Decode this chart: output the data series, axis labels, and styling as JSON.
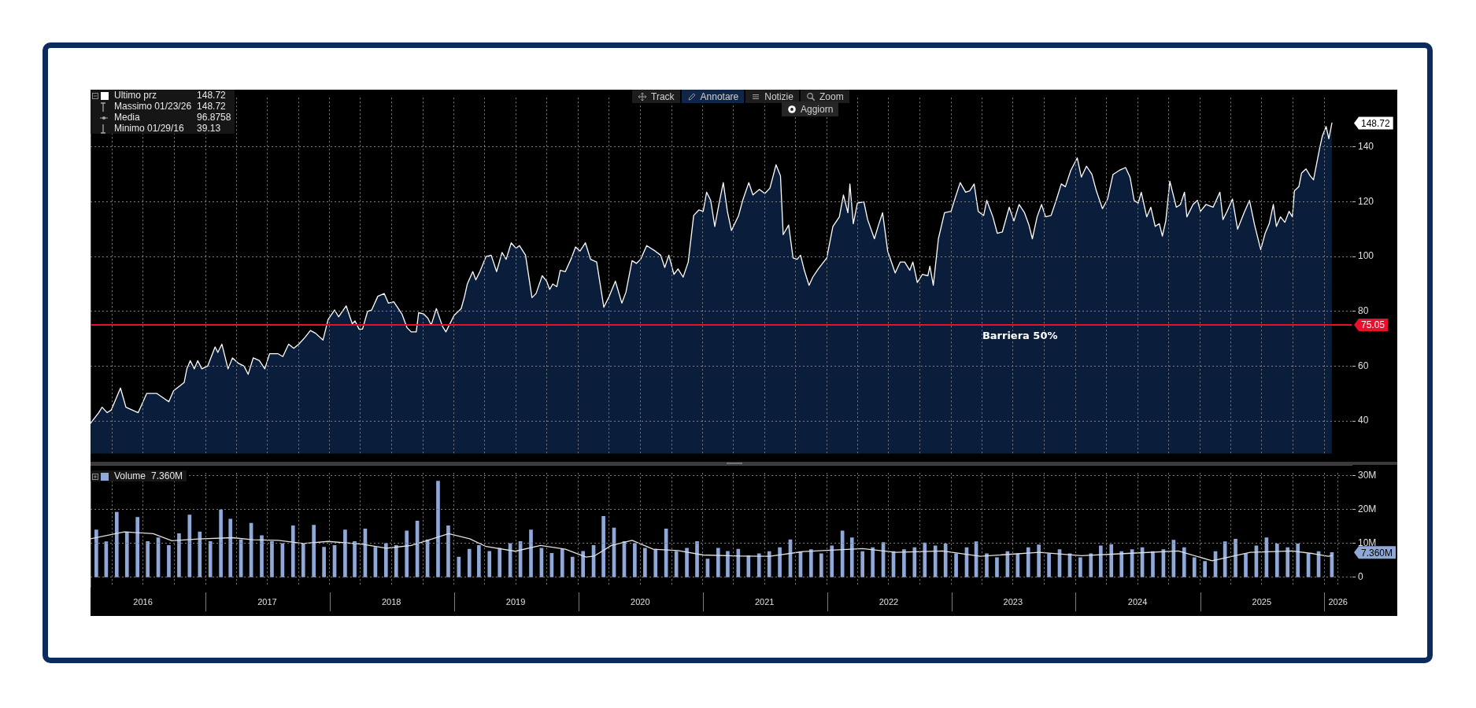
{
  "chart_data": [
    {
      "type": "area",
      "series": [
        {
          "name": "Ultimo prz",
          "color": "#ffffff",
          "x": [
            "2016-01-29",
            "2016-02-22",
            "2016-03-03",
            "2016-03-18",
            "2016-03-30",
            "2016-04-26",
            "2016-05-12",
            "2016-05-30",
            "2016-06-17",
            "2016-07-12",
            "2016-08-11",
            "2016-09-15",
            "2016-09-29",
            "2016-10-30",
            "2016-11-07",
            "2016-11-17",
            "2016-11-29",
            "2016-12-09",
            "2016-12-21",
            "2017-01-07",
            "2017-01-29",
            "2017-02-06",
            "2017-02-18",
            "2017-03-08",
            "2017-03-21",
            "2017-04-08",
            "2017-04-24",
            "2017-05-06",
            "2017-05-21",
            "2017-06-08",
            "2017-06-24",
            "2017-07-08",
            "2017-08-02",
            "2017-08-16",
            "2017-09-02",
            "2017-09-17",
            "2017-10-02",
            "2017-10-20",
            "2017-11-05",
            "2017-11-20",
            "2017-12-12",
            "2017-12-27",
            "2018-01-15",
            "2018-01-27",
            "2018-02-18",
            "2018-03-08",
            "2018-03-16",
            "2018-03-28",
            "2018-04-07",
            "2018-04-22",
            "2018-05-04",
            "2018-05-22",
            "2018-06-10",
            "2018-06-22",
            "2018-07-08",
            "2018-08-01",
            "2018-08-16",
            "2018-08-28",
            "2018-09-12",
            "2018-09-19",
            "2018-10-04",
            "2018-10-16",
            "2018-10-26",
            "2018-11-10",
            "2018-11-28",
            "2018-12-08",
            "2019-01-01",
            "2019-01-22",
            "2019-02-01",
            "2019-02-09",
            "2019-02-25",
            "2019-03-06",
            "2019-03-18",
            "2019-04-05",
            "2019-04-20",
            "2019-05-06",
            "2019-05-22",
            "2019-06-03",
            "2019-06-18",
            "2019-07-02",
            "2019-07-12",
            "2019-07-30",
            "2019-08-18",
            "2019-08-30",
            "2019-09-17",
            "2019-09-30",
            "2019-10-09",
            "2019-10-18",
            "2019-10-30",
            "2019-11-09",
            "2019-11-24",
            "2019-12-12",
            "2019-12-24",
            "2020-01-06",
            "2020-01-22",
            "2020-02-06",
            "2020-02-24",
            "2020-03-16",
            "2020-04-01",
            "2020-04-19",
            "2020-05-08",
            "2020-05-20",
            "2020-06-07",
            "2020-06-20",
            "2020-07-02",
            "2020-07-20",
            "2020-08-14",
            "2020-08-30",
            "2020-09-11",
            "2020-09-23",
            "2020-10-08",
            "2020-10-20",
            "2020-11-04",
            "2020-11-19",
            "2020-12-05",
            "2020-12-20",
            "2021-01-02",
            "2021-01-12",
            "2021-01-24",
            "2021-02-05",
            "2021-02-17",
            "2021-03-02",
            "2021-03-14",
            "2021-03-26",
            "2021-04-16",
            "2021-04-28",
            "2021-05-16",
            "2021-05-28",
            "2021-06-16",
            "2021-07-02",
            "2021-07-17",
            "2021-08-04",
            "2021-08-17",
            "2021-08-25",
            "2021-09-10",
            "2021-09-23",
            "2021-10-05",
            "2021-10-15",
            "2021-10-26",
            "2021-11-09",
            "2021-11-20",
            "2021-12-06",
            "2021-12-31",
            "2022-01-18",
            "2022-02-06",
            "2022-02-18",
            "2022-03-03",
            "2022-03-09",
            "2022-03-19",
            "2022-03-31",
            "2022-04-19",
            "2022-04-30",
            "2022-05-20",
            "2022-06-01",
            "2022-06-13",
            "2022-06-28",
            "2022-07-20",
            "2022-08-04",
            "2022-08-17",
            "2022-09-01",
            "2022-09-10",
            "2022-09-23",
            "2022-10-08",
            "2022-10-24",
            "2022-10-30",
            "2022-11-09",
            "2022-11-24",
            "2022-12-12",
            "2022-12-31",
            "2023-01-10",
            "2023-01-27",
            "2023-02-12",
            "2023-02-24",
            "2023-03-09",
            "2023-03-21",
            "2023-04-06",
            "2023-04-15",
            "2023-05-03",
            "2023-05-16",
            "2023-05-31",
            "2023-06-20",
            "2023-07-04",
            "2023-07-19",
            "2023-08-04",
            "2023-08-17",
            "2023-08-27",
            "2023-09-10",
            "2023-09-23",
            "2023-10-05",
            "2023-10-21",
            "2023-11-05",
            "2023-11-20",
            "2023-12-02",
            "2023-12-18",
            "2024-01-06",
            "2024-01-18",
            "2024-02-02",
            "2024-02-18",
            "2024-03-02",
            "2024-03-20",
            "2024-04-04",
            "2024-04-20",
            "2024-05-09",
            "2024-05-27",
            "2024-06-09",
            "2024-06-21",
            "2024-07-03",
            "2024-07-12",
            "2024-07-28",
            "2024-08-09",
            "2024-08-22",
            "2024-09-03",
            "2024-09-12",
            "2024-09-22",
            "2024-10-04",
            "2024-10-23",
            "2024-11-04",
            "2024-11-16",
            "2024-11-23",
            "2024-12-11",
            "2024-12-24",
            "2025-01-02",
            "2025-01-18",
            "2025-02-08",
            "2025-02-28",
            "2025-03-09",
            "2025-03-21",
            "2025-04-06",
            "2025-04-21",
            "2025-05-10",
            "2025-05-26",
            "2025-06-10",
            "2025-06-28",
            "2025-07-11",
            "2025-07-23",
            "2025-08-04",
            "2025-08-13",
            "2025-08-25",
            "2025-09-07",
            "2025-09-19",
            "2025-09-29",
            "2025-10-05",
            "2025-10-18",
            "2025-10-26",
            "2025-11-08",
            "2025-11-20",
            "2025-11-30",
            "2025-12-18",
            "2025-12-26",
            "2026-01-06",
            "2026-01-14",
            "2026-01-23"
          ],
          "values": [
            39.13,
            43,
            45,
            43,
            44,
            52,
            45,
            44,
            43,
            50,
            50,
            47,
            51,
            54,
            59,
            62,
            59,
            62,
            59,
            60,
            67,
            65,
            68,
            59,
            63,
            61,
            60,
            57,
            63,
            62,
            59,
            64.5,
            64.5,
            63.5,
            68,
            66.5,
            68,
            70.5,
            73,
            72,
            69.5,
            77,
            80.5,
            78,
            82,
            75.5,
            76.5,
            73.5,
            73.5,
            80,
            80.5,
            85.5,
            86.5,
            83,
            83.5,
            79,
            74,
            72.5,
            72.5,
            79.5,
            79,
            77.5,
            75,
            81,
            74.5,
            72.5,
            78.5,
            81,
            85.5,
            90,
            94.5,
            91.5,
            94.5,
            100,
            100.5,
            94.5,
            101.5,
            99,
            105,
            103,
            104,
            100.5,
            85,
            86.5,
            93,
            91,
            88,
            90,
            89,
            95,
            94.5,
            99.5,
            103.5,
            102,
            105,
            99,
            98,
            81.5,
            85.5,
            91,
            83,
            87,
            98.5,
            97.5,
            99,
            104,
            102,
            100.5,
            96,
            100.5,
            93.5,
            95.5,
            92.5,
            98,
            115,
            117,
            116.5,
            123.5,
            120.5,
            111,
            119,
            127,
            116.5,
            109.5,
            115,
            120.5,
            127,
            122.5,
            124.5,
            123,
            125,
            133.5,
            129.5,
            108,
            111.5,
            99.5,
            99,
            100.5,
            95,
            89.5,
            92.5,
            95.5,
            99.5,
            111,
            114.5,
            122.5,
            116,
            126.5,
            112,
            119.5,
            120,
            113.5,
            106.5,
            111.5,
            116,
            102,
            94,
            98,
            98,
            95,
            98,
            90.5,
            93.5,
            93,
            96.5,
            89.5,
            106.5,
            116,
            116.5,
            120.5,
            127,
            123.5,
            124,
            126.5,
            116.5,
            115,
            120.5,
            114.5,
            108.5,
            109,
            118,
            113,
            119,
            116,
            111.5,
            106.5,
            114.5,
            119,
            114.5,
            115,
            120.5,
            126.5,
            125.5,
            131.5,
            136,
            129,
            133,
            130,
            124,
            117.5,
            121,
            130,
            131.5,
            132.5,
            129,
            120.5,
            119.5,
            123.5,
            114.5,
            118,
            111,
            112,
            107.5,
            113,
            127.5,
            118,
            119,
            123.5,
            114.5,
            119,
            120.5,
            116.5,
            119,
            118,
            123.5,
            113.5,
            116.5,
            121,
            110,
            116,
            120.5,
            111.5,
            102.5,
            108.5,
            112,
            119,
            111,
            114.5,
            112.5,
            116.5,
            114.5,
            124,
            125.5,
            130.5,
            132,
            129.5,
            128,
            139.5,
            144,
            147.5,
            143,
            148.72
          ]
        }
      ],
      "xlim": [
        "2016-01-29",
        "2026-03-22"
      ],
      "xticks": [
        {
          "value": "2016-04-01",
          "label": null
        },
        {
          "value": "2016-07-01",
          "label": null
        },
        {
          "value": "2016-10-01",
          "label": null
        },
        {
          "value": "2017-01-01",
          "label": null
        },
        {
          "value": "2017-04-01",
          "label": null
        },
        {
          "value": "2017-07-01",
          "label": null
        },
        {
          "value": "2017-10-01",
          "label": null
        },
        {
          "value": "2018-01-01",
          "label": null
        },
        {
          "value": "2018-04-01",
          "label": null
        },
        {
          "value": "2018-07-01",
          "label": null
        },
        {
          "value": "2018-10-01",
          "label": null
        },
        {
          "value": "2019-01-01",
          "label": null
        },
        {
          "value": "2019-04-01",
          "label": null
        },
        {
          "value": "2019-07-01",
          "label": null
        },
        {
          "value": "2019-10-01",
          "label": null
        },
        {
          "value": "2020-01-01",
          "label": null
        },
        {
          "value": "2020-04-01",
          "label": null
        },
        {
          "value": "2020-07-01",
          "label": null
        },
        {
          "value": "2020-10-01",
          "label": null
        },
        {
          "value": "2021-01-01",
          "label": null
        },
        {
          "value": "2021-04-01",
          "label": null
        },
        {
          "value": "2021-07-01",
          "label": null
        },
        {
          "value": "2021-10-01",
          "label": null
        },
        {
          "value": "2022-01-01",
          "label": null
        },
        {
          "value": "2022-04-01",
          "label": null
        },
        {
          "value": "2022-07-01",
          "label": null
        },
        {
          "value": "2022-10-01",
          "label": null
        },
        {
          "value": "2023-01-01",
          "label": null
        },
        {
          "value": "2023-04-01",
          "label": null
        },
        {
          "value": "2023-07-01",
          "label": null
        },
        {
          "value": "2023-10-01",
          "label": null
        },
        {
          "value": "2024-01-01",
          "label": null
        },
        {
          "value": "2024-04-01",
          "label": null
        },
        {
          "value": "2024-07-01",
          "label": null
        },
        {
          "value": "2024-10-01",
          "label": null
        },
        {
          "value": "2025-01-01",
          "label": null
        },
        {
          "value": "2025-04-01",
          "label": null
        },
        {
          "value": "2025-07-01",
          "label": null
        },
        {
          "value": "2025-10-01",
          "label": null
        },
        {
          "value": "2026-01-01",
          "label": null
        }
      ],
      "ylim": [
        28,
        158
      ],
      "yticks": [
        40,
        60,
        80,
        100,
        120,
        140
      ],
      "ref_lines": [
        {
          "axis": "y",
          "value": 75.05,
          "label": "Barriera 50%",
          "color": "#e8112d"
        }
      ],
      "annotations": [
        "Track",
        "Annotare",
        "Notizie",
        "Zoom",
        "Aggiorn",
        "148.72",
        "Massimo 01/23/26",
        "148.72",
        "Media",
        "96.8758",
        "Minimo 01/29/16",
        "39.13",
        "148.72",
        "75.05"
      ],
      "grid": true,
      "legend": "top left",
      "tick_labels": "y",
      "marker": "none"
    },
    {
      "type": "bar",
      "series": [
        {
          "name": "Volume",
          "color": "#8fa8d8",
          "x": [
            "2016-02-15",
            "2016-03-15",
            "2016-04-15",
            "2016-05-15",
            "2016-06-15",
            "2016-07-15",
            "2016-08-15",
            "2016-09-15",
            "2016-10-15",
            "2016-11-15",
            "2016-12-15",
            "2017-01-15",
            "2017-02-15",
            "2017-03-15",
            "2017-04-15",
            "2017-05-15",
            "2017-06-15",
            "2017-07-15",
            "2017-08-15",
            "2017-09-15",
            "2017-10-15",
            "2017-11-15",
            "2017-12-15",
            "2018-01-15",
            "2018-02-15",
            "2018-03-15",
            "2018-04-15",
            "2018-05-15",
            "2018-06-15",
            "2018-07-15",
            "2018-08-15",
            "2018-09-15",
            "2018-10-15",
            "2018-11-15",
            "2018-12-15",
            "2019-01-15",
            "2019-02-15",
            "2019-03-15",
            "2019-04-15",
            "2019-05-15",
            "2019-06-15",
            "2019-07-15",
            "2019-08-15",
            "2019-09-15",
            "2019-10-15",
            "2019-11-15",
            "2019-12-15",
            "2020-01-15",
            "2020-02-15",
            "2020-03-15",
            "2020-04-15",
            "2020-05-15",
            "2020-06-15",
            "2020-07-15",
            "2020-08-15",
            "2020-09-15",
            "2020-10-15",
            "2020-11-15",
            "2020-12-15",
            "2021-01-15",
            "2021-02-15",
            "2021-03-15",
            "2021-04-15",
            "2021-05-15",
            "2021-06-15",
            "2021-07-15",
            "2021-08-15",
            "2021-09-15",
            "2021-10-15",
            "2021-11-15",
            "2021-12-15",
            "2022-01-15",
            "2022-02-15",
            "2022-03-15",
            "2022-04-15",
            "2022-05-15",
            "2022-06-15",
            "2022-07-15",
            "2022-08-15",
            "2022-09-15",
            "2022-10-15",
            "2022-11-15",
            "2022-12-15",
            "2023-01-15",
            "2023-02-15",
            "2023-03-15",
            "2023-04-15",
            "2023-05-15",
            "2023-06-15",
            "2023-07-15",
            "2023-08-15",
            "2023-09-15",
            "2023-10-15",
            "2023-11-15",
            "2023-12-15",
            "2024-01-15",
            "2024-02-15",
            "2024-03-15",
            "2024-04-15",
            "2024-05-15",
            "2024-06-15",
            "2024-07-15",
            "2024-08-15",
            "2024-09-15",
            "2024-10-15",
            "2024-11-15",
            "2024-12-15",
            "2025-01-15",
            "2025-02-15",
            "2025-03-15",
            "2025-04-15",
            "2025-05-15",
            "2025-06-15",
            "2025-07-15",
            "2025-08-15",
            "2025-09-15",
            "2025-10-15",
            "2025-11-15",
            "2025-12-15",
            "2026-01-23"
          ],
          "values": [
            14,
            10.5,
            19.2,
            13.4,
            17.7,
            10.6,
            11.7,
            9.4,
            12.9,
            18.4,
            13.4,
            10.6,
            19.9,
            17.2,
            11.1,
            16,
            12.3,
            10.6,
            10,
            15.2,
            10,
            15.4,
            8.9,
            9.4,
            14,
            10.6,
            14.3,
            8.9,
            10,
            9.4,
            13.7,
            16.6,
            11.1,
            28.4,
            15.2,
            6,
            8.3,
            9.4,
            7.7,
            8.6,
            10,
            10.6,
            14,
            8.6,
            7.1,
            8.3,
            6,
            7.7,
            9.4,
            18,
            14.6,
            10.6,
            10,
            8.6,
            8.3,
            14.3,
            7.7,
            8.6,
            10.6,
            5.4,
            8.6,
            7.7,
            8.3,
            6.4,
            7,
            7.6,
            8.8,
            11.1,
            7.6,
            8.2,
            7,
            9.3,
            13.7,
            11.7,
            7.6,
            8.8,
            10.3,
            7.6,
            8.2,
            8.8,
            10.2,
            9.3,
            9.9,
            7,
            8.8,
            10.5,
            7,
            5.8,
            7.6,
            7,
            8.8,
            9.6,
            7,
            8.2,
            7,
            5.8,
            7,
            9.3,
            9.7,
            7.6,
            8.2,
            8.8,
            7.6,
            8.2,
            11,
            8.8,
            5.8,
            4.7,
            7.6,
            10.5,
            11.3,
            7,
            9.3,
            11.7,
            9.9,
            8.8,
            9.9,
            7,
            7.6,
            7.36
          ]
        },
        {
          "type": "line",
          "color": "#e0e0e0",
          "x": [
            "2016-01-29",
            "2016-05-07",
            "2016-07-31",
            "2016-09-24",
            "2016-12-25",
            "2017-03-21",
            "2017-05-21",
            "2017-08-03",
            "2017-10-15",
            "2017-12-27",
            "2018-04-04",
            "2018-06-16",
            "2018-08-28",
            "2018-10-16",
            "2018-12-16",
            "2019-02-16",
            "2019-04-05",
            "2019-06-30",
            "2019-09-12",
            "2019-11-24",
            "2020-01-24",
            "2020-02-17",
            "2020-04-07",
            "2020-06-07",
            "2020-08-08",
            "2020-10-20",
            "2021-01-02",
            "2021-04-22",
            "2021-07-17",
            "2021-10-23",
            "2022-04-15",
            "2022-07-22",
            "2022-12-06",
            "2023-03-27",
            "2023-09-16",
            "2024-01-18",
            "2024-05-21",
            "2024-10-29",
            "2025-02-05",
            "2025-05-28",
            "2025-09-28",
            "2025-11-29",
            "2026-01-12",
            "2026-01-23"
          ],
          "values": [
            11.4,
            13.4,
            12.9,
            10.8,
            11.4,
            11.7,
            11.1,
            10.9,
            10,
            10.6,
            9.8,
            8.6,
            9.4,
            10.9,
            12.9,
            11.4,
            9.1,
            7.7,
            9.4,
            8.3,
            6,
            6.3,
            9.4,
            10.9,
            8.3,
            7.9,
            6.6,
            6.3,
            6.2,
            7.6,
            8.5,
            7.4,
            7.8,
            6.2,
            7.4,
            6.4,
            7,
            7.8,
            4.9,
            7.4,
            7.8,
            7,
            6.2,
            6.4
          ]
        }
      ],
      "xlim": [
        "2016-01-29",
        "2026-03-22"
      ],
      "xticks": [
        {
          "value": "2016-04-01",
          "label": null
        },
        {
          "value": "2016-07-01",
          "label": "2016"
        },
        {
          "value": "2016-10-01",
          "label": null
        },
        {
          "value": "2017-01-01",
          "label": null
        },
        {
          "value": "2017-04-01",
          "label": null
        },
        {
          "value": "2017-07-01",
          "label": "2017"
        },
        {
          "value": "2017-10-01",
          "label": null
        },
        {
          "value": "2018-01-01",
          "label": null
        },
        {
          "value": "2018-04-01",
          "label": null
        },
        {
          "value": "2018-07-01",
          "label": "2018"
        },
        {
          "value": "2018-10-01",
          "label": null
        },
        {
          "value": "2019-01-01",
          "label": null
        },
        {
          "value": "2019-04-01",
          "label": null
        },
        {
          "value": "2019-07-01",
          "label": "2019"
        },
        {
          "value": "2019-10-01",
          "label": null
        },
        {
          "value": "2020-01-01",
          "label": null
        },
        {
          "value": "2020-04-01",
          "label": null
        },
        {
          "value": "2020-07-01",
          "label": "2020"
        },
        {
          "value": "2020-10-01",
          "label": null
        },
        {
          "value": "2021-01-01",
          "label": null
        },
        {
          "value": "2021-04-01",
          "label": null
        },
        {
          "value": "2021-07-01",
          "label": "2021"
        },
        {
          "value": "2021-10-01",
          "label": null
        },
        {
          "value": "2022-01-01",
          "label": null
        },
        {
          "value": "2022-04-01",
          "label": null
        },
        {
          "value": "2022-07-01",
          "label": "2022"
        },
        {
          "value": "2022-10-01",
          "label": null
        },
        {
          "value": "2023-01-01",
          "label": null
        },
        {
          "value": "2023-04-01",
          "label": null
        },
        {
          "value": "2023-07-01",
          "label": "2023"
        },
        {
          "value": "2023-10-01",
          "label": null
        },
        {
          "value": "2024-01-01",
          "label": null
        },
        {
          "value": "2024-04-01",
          "label": null
        },
        {
          "value": "2024-07-01",
          "label": "2024"
        },
        {
          "value": "2024-10-01",
          "label": null
        },
        {
          "value": "2025-01-01",
          "label": null
        },
        {
          "value": "2025-04-01",
          "label": null
        },
        {
          "value": "2025-07-01",
          "label": "2025"
        },
        {
          "value": "2025-10-01",
          "label": null
        },
        {
          "value": "2026-01-01",
          "label": null
        },
        {
          "value": "2026-02-10",
          "label": "2026"
        }
      ],
      "ylim": [
        -2.8,
        30.8
      ],
      "yticks": [
        0,
        {
          "value": 10,
          "label": "10M"
        },
        {
          "value": 20,
          "label": "20M"
        },
        {
          "value": 30,
          "label": "30M"
        }
      ],
      "annotations": [
        "7.360M",
        "7.360M"
      ],
      "grid": true,
      "legend": "top left",
      "marker": "none"
    }
  ]
}
